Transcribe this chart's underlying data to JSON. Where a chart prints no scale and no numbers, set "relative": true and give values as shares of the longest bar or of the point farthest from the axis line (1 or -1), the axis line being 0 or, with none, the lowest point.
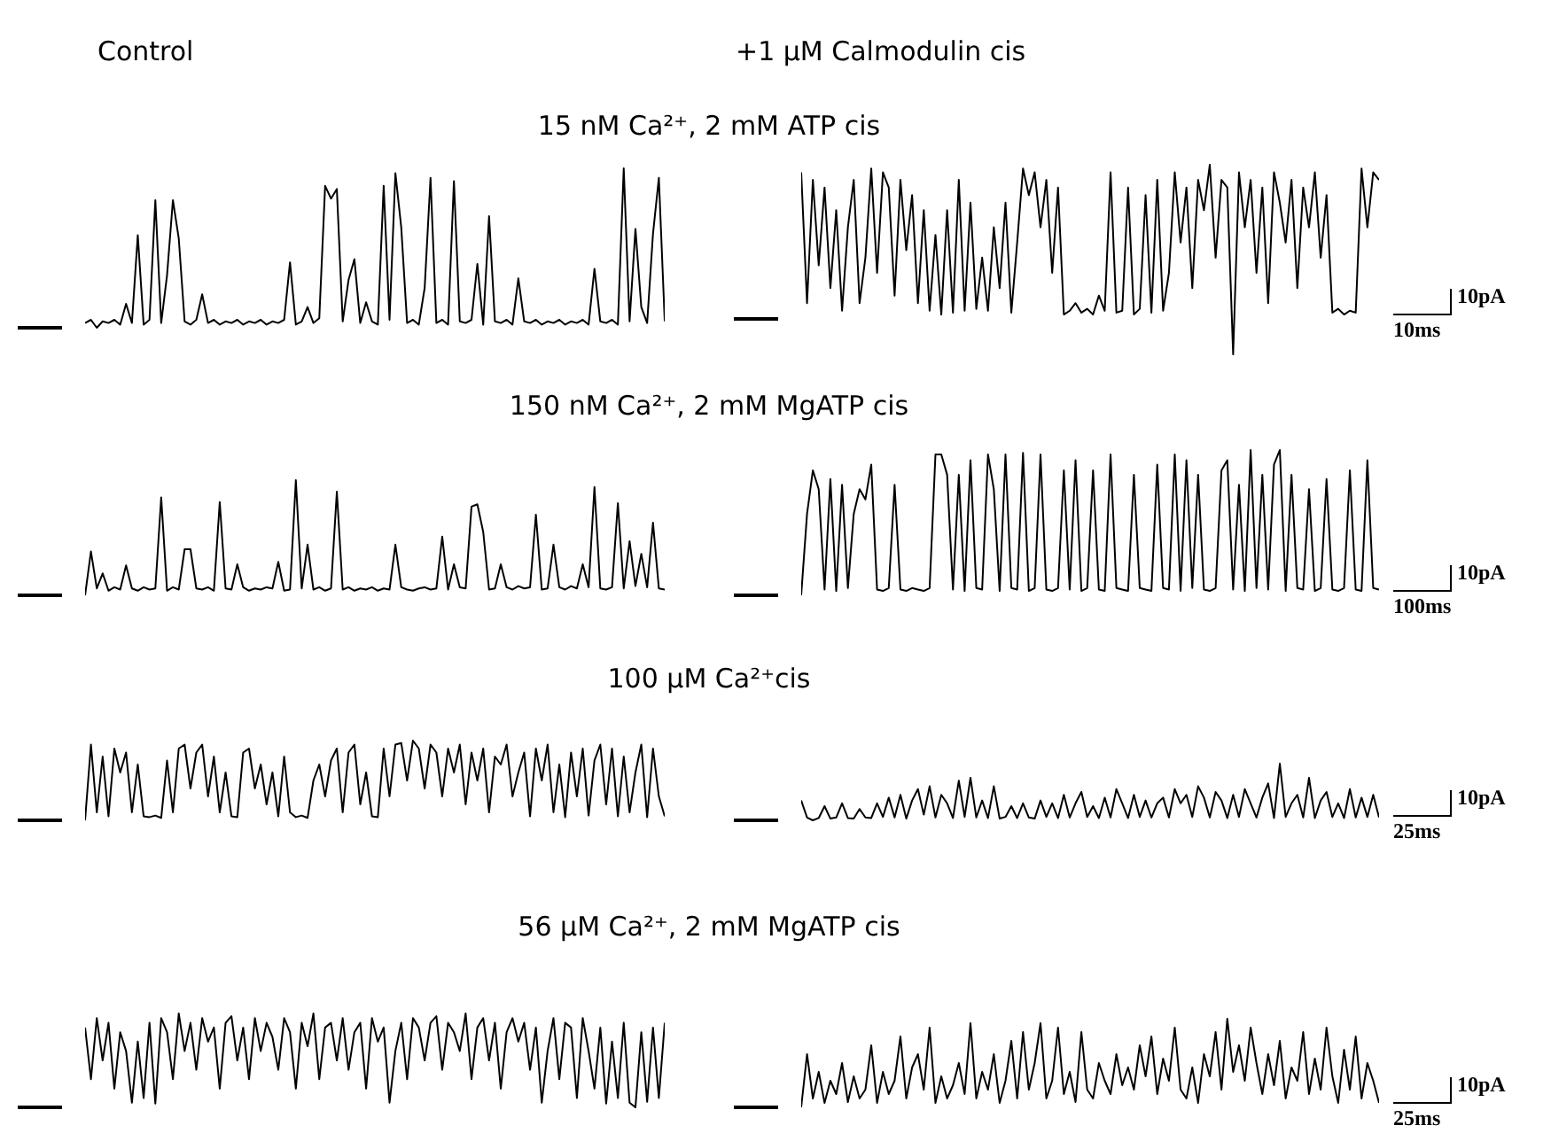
{
  "chart_data": [
    {
      "type": "line",
      "subtitle": "Control",
      "title": "15 nM Ca²⁺, 2 mM ATP cis",
      "relative": true,
      "color": "#000000",
      "categories": [
        null,
        null,
        null,
        null,
        null,
        null,
        null,
        null,
        null,
        null,
        null,
        null,
        null,
        null,
        null,
        null,
        null,
        null,
        null,
        null,
        null,
        null,
        null,
        null,
        null,
        null,
        null,
        null,
        null,
        null,
        null,
        null,
        null,
        null,
        null,
        null,
        null,
        null,
        null,
        null,
        null,
        null,
        null,
        null,
        null,
        null,
        null,
        null,
        null,
        null,
        null,
        null,
        null,
        null,
        null,
        null,
        null,
        null,
        null,
        null,
        null,
        null,
        null,
        null,
        null,
        null,
        null,
        null,
        null,
        null,
        null,
        null,
        null,
        null,
        null,
        null,
        null,
        null,
        null,
        null,
        null,
        null,
        null,
        null,
        null,
        null,
        null,
        null,
        null,
        null,
        null,
        null,
        null,
        null,
        null,
        null,
        null,
        null,
        null,
        null
      ],
      "values": [
        0.03,
        0.05,
        0,
        0.04,
        0.03,
        0.05,
        0.02,
        0.15,
        0.03,
        0.58,
        0.02,
        0.05,
        0.8,
        0.03,
        0.33,
        0.8,
        0.56,
        0.04,
        0.02,
        0.05,
        0.21,
        0.03,
        0.05,
        0.02,
        0.04,
        0.03,
        0.05,
        0.02,
        0.04,
        0.03,
        0.05,
        0.02,
        0.04,
        0.03,
        0.05,
        0.41,
        0.02,
        0.04,
        0.13,
        0.03,
        0.06,
        0.89,
        0.81,
        0.87,
        0.04,
        0.3,
        0.43,
        0.03,
        0.16,
        0.04,
        0.02,
        0.89,
        0.05,
        0.97,
        0.63,
        0.03,
        0.05,
        0.02,
        0.25,
        0.94,
        0.03,
        0.05,
        0.02,
        0.92,
        0.04,
        0.03,
        0.05,
        0.4,
        0.02,
        0.7,
        0.04,
        0.03,
        0.05,
        0.02,
        0.31,
        0.04,
        0.03,
        0.05,
        0.02,
        0.04,
        0.03,
        0.05,
        0.02,
        0.04,
        0.03,
        0.05,
        0.02,
        0.37,
        0.04,
        0.03,
        0.05,
        0.02,
        1,
        0.04,
        0.62,
        0.13,
        0.03,
        0.59,
        0.94,
        0.04
      ]
    },
    {
      "type": "line",
      "subtitle": "+1 μM Calmodulin cis",
      "relative": true,
      "color": "#000000",
      "annotations": [
        "10pA",
        "10ms"
      ],
      "categories": [
        null,
        null,
        null,
        null,
        null,
        null,
        null,
        null,
        null,
        null,
        null,
        null,
        null,
        null,
        null,
        null,
        null,
        null,
        null,
        null,
        null,
        null,
        null,
        null,
        null,
        null,
        null,
        null,
        null,
        null,
        null,
        null,
        null,
        null,
        null,
        null,
        null,
        null,
        null,
        null,
        null,
        null,
        null,
        null,
        null,
        null,
        null,
        null,
        null,
        null,
        null,
        null,
        null,
        null,
        null,
        null,
        null,
        null,
        null,
        null,
        null,
        null,
        null,
        null,
        null,
        null,
        null,
        null,
        null,
        null,
        null,
        null,
        null,
        null,
        null,
        null,
        null,
        null,
        null,
        null,
        null,
        null,
        null,
        null,
        null,
        null,
        null,
        null,
        null,
        null,
        null,
        null,
        null,
        null,
        null,
        null,
        null,
        null,
        null,
        null
      ],
      "values": [
        0.96,
        0.27,
        0.92,
        0.47,
        0.88,
        0.35,
        0.76,
        0.23,
        0.67,
        0.92,
        0.27,
        0.51,
        0.98,
        0.43,
        0.96,
        0.88,
        0.31,
        0.92,
        0.55,
        0.84,
        0.27,
        0.76,
        0.23,
        0.63,
        0.21,
        0.76,
        0.22,
        0.92,
        0.23,
        0.8,
        0.24,
        0.51,
        0.23,
        0.67,
        0.35,
        0.8,
        0.22,
        0.59,
        0.98,
        0.84,
        0.96,
        0.67,
        0.92,
        0.43,
        0.88,
        0.21,
        0.23,
        0.27,
        0.22,
        0.24,
        0.21,
        0.31,
        0.23,
        0.96,
        0.22,
        0.23,
        0.88,
        0.21,
        0.24,
        0.84,
        0.22,
        0.92,
        0.23,
        0.43,
        0.96,
        0.59,
        0.88,
        0.35,
        0.92,
        0.76,
        1,
        0.51,
        0.92,
        0.88,
        0,
        0.96,
        0.67,
        0.92,
        0.43,
        0.88,
        0.27,
        0.96,
        0.8,
        0.59,
        0.92,
        0.35,
        0.88,
        0.67,
        0.96,
        0.51,
        0.84,
        0.22,
        0.24,
        0.21,
        0.23,
        0.22,
        0.98,
        0.67,
        0.96,
        0.92
      ]
    },
    {
      "type": "line",
      "title": "150 nM Ca²⁺, 2 mM MgATP cis",
      "relative": true,
      "color": "#000000",
      "categories": [
        null,
        null,
        null,
        null,
        null,
        null,
        null,
        null,
        null,
        null,
        null,
        null,
        null,
        null,
        null,
        null,
        null,
        null,
        null,
        null,
        null,
        null,
        null,
        null,
        null,
        null,
        null,
        null,
        null,
        null,
        null,
        null,
        null,
        null,
        null,
        null,
        null,
        null,
        null,
        null,
        null,
        null,
        null,
        null,
        null,
        null,
        null,
        null,
        null,
        null,
        null,
        null,
        null,
        null,
        null,
        null,
        null,
        null,
        null,
        null,
        null,
        null,
        null,
        null,
        null,
        null,
        null,
        null,
        null,
        null,
        null,
        null,
        null,
        null,
        null,
        null,
        null,
        null,
        null,
        null,
        null,
        null,
        null,
        null,
        null,
        null,
        null,
        null,
        null,
        null,
        null,
        null,
        null,
        null,
        null,
        null,
        null,
        null,
        null,
        null
      ],
      "values": [
        0,
        0.38,
        0.06,
        0.19,
        0.04,
        0.07,
        0.05,
        0.26,
        0.06,
        0.04,
        0.07,
        0.05,
        0.06,
        0.85,
        0.04,
        0.07,
        0.05,
        0.4,
        0.4,
        0.06,
        0.05,
        0.07,
        0.04,
        0.81,
        0.06,
        0.05,
        0.27,
        0.07,
        0.04,
        0.06,
        0.05,
        0.07,
        0.06,
        0.29,
        0.04,
        0.05,
        1,
        0.06,
        0.44,
        0.05,
        0.07,
        0.04,
        0.06,
        0.9,
        0.05,
        0.07,
        0.04,
        0.06,
        0.05,
        0.07,
        0.04,
        0.06,
        0.05,
        0.44,
        0.07,
        0.05,
        0.04,
        0.06,
        0.07,
        0.05,
        0.06,
        0.51,
        0.05,
        0.27,
        0.07,
        0.06,
        0.77,
        0.79,
        0.55,
        0.05,
        0.06,
        0.27,
        0.07,
        0.05,
        0.08,
        0.06,
        0.07,
        0.7,
        0.05,
        0.06,
        0.44,
        0.07,
        0.05,
        0.08,
        0.06,
        0.27,
        0.07,
        0.94,
        0.06,
        0.05,
        0.07,
        0.8,
        0.06,
        0.47,
        0.08,
        0.36,
        0.07,
        0.63,
        0.06,
        0.05
      ]
    },
    {
      "type": "line",
      "relative": true,
      "color": "#000000",
      "annotations": [
        "10pA",
        "100ms"
      ],
      "categories": [
        null,
        null,
        null,
        null,
        null,
        null,
        null,
        null,
        null,
        null,
        null,
        null,
        null,
        null,
        null,
        null,
        null,
        null,
        null,
        null,
        null,
        null,
        null,
        null,
        null,
        null,
        null,
        null,
        null,
        null,
        null,
        null,
        null,
        null,
        null,
        null,
        null,
        null,
        null,
        null,
        null,
        null,
        null,
        null,
        null,
        null,
        null,
        null,
        null,
        null,
        null,
        null,
        null,
        null,
        null,
        null,
        null,
        null,
        null,
        null,
        null,
        null,
        null,
        null,
        null,
        null,
        null,
        null,
        null,
        null,
        null,
        null,
        null,
        null,
        null,
        null,
        null,
        null,
        null,
        null,
        null,
        null,
        null,
        null,
        null,
        null,
        null,
        null,
        null,
        null,
        null,
        null,
        null,
        null,
        null,
        null,
        null,
        null,
        null,
        null
      ],
      "values": [
        0,
        0.56,
        0.86,
        0.73,
        0.04,
        0.8,
        0.03,
        0.76,
        0.05,
        0.56,
        0.73,
        0.66,
        0.9,
        0.04,
        0.03,
        0.05,
        0.76,
        0.04,
        0.03,
        0.05,
        0.04,
        0.03,
        0.05,
        0.97,
        0.97,
        0.83,
        0.04,
        0.83,
        0.03,
        0.93,
        0.05,
        0.04,
        0.97,
        0.73,
        0.03,
        0.97,
        0.05,
        0.04,
        0.98,
        0.03,
        0.05,
        0.97,
        0.04,
        0.03,
        0.05,
        0.86,
        0.04,
        0.93,
        0.03,
        0.05,
        0.86,
        0.04,
        0.03,
        0.97,
        0.05,
        0.04,
        0.03,
        0.83,
        0.05,
        0.04,
        0.03,
        0.9,
        0.05,
        0.04,
        0.97,
        0.03,
        0.93,
        0.05,
        0.83,
        0.04,
        0.03,
        0.05,
        0.86,
        0.93,
        0.04,
        0.76,
        0.03,
        1,
        0.05,
        0.83,
        0.04,
        0.9,
        1,
        0.03,
        0.83,
        0.05,
        0.04,
        0.73,
        0.03,
        0.05,
        0.8,
        0.04,
        0.03,
        0.05,
        0.86,
        0.04,
        0.03,
        0.93,
        0.05,
        0.04
      ]
    },
    {
      "type": "line",
      "title": "100 μM Ca²⁺cis",
      "relative": true,
      "color": "#000000",
      "categories": [
        null,
        null,
        null,
        null,
        null,
        null,
        null,
        null,
        null,
        null,
        null,
        null,
        null,
        null,
        null,
        null,
        null,
        null,
        null,
        null,
        null,
        null,
        null,
        null,
        null,
        null,
        null,
        null,
        null,
        null,
        null,
        null,
        null,
        null,
        null,
        null,
        null,
        null,
        null,
        null,
        null,
        null,
        null,
        null,
        null,
        null,
        null,
        null,
        null,
        null,
        null,
        null,
        null,
        null,
        null,
        null,
        null,
        null,
        null,
        null,
        null,
        null,
        null,
        null,
        null,
        null,
        null,
        null,
        null,
        null,
        null,
        null,
        null,
        null,
        null,
        null,
        null,
        null,
        null,
        null,
        null,
        null,
        null,
        null,
        null,
        null,
        null,
        null,
        null,
        null,
        null,
        null,
        null,
        null,
        null,
        null,
        null,
        null,
        null,
        null
      ],
      "values": [
        0,
        0.95,
        0.1,
        0.8,
        0.05,
        0.9,
        0.6,
        0.85,
        0.1,
        0.7,
        0.05,
        0.04,
        0.06,
        0.03,
        0.75,
        0.1,
        0.9,
        0.95,
        0.4,
        0.85,
        0.95,
        0.3,
        0.8,
        0.1,
        0.6,
        0.05,
        0.04,
        0.85,
        0.9,
        0.4,
        0.7,
        0.2,
        0.6,
        0.05,
        0.8,
        0.1,
        0.04,
        0.06,
        0.03,
        0.5,
        0.7,
        0.3,
        0.75,
        0.9,
        0.1,
        0.85,
        0.95,
        0.2,
        0.6,
        0.05,
        0.04,
        0.9,
        0.3,
        0.95,
        0.97,
        0.5,
        1,
        0.9,
        0.4,
        0.95,
        0.85,
        0.3,
        0.9,
        0.6,
        0.95,
        0.2,
        0.85,
        0.5,
        0.9,
        0.1,
        0.8,
        0.7,
        0.95,
        0.3,
        0.6,
        0.85,
        0.05,
        0.9,
        0.5,
        0.95,
        0.1,
        0.7,
        0.04,
        0.85,
        0.3,
        0.9,
        0.06,
        0.75,
        0.95,
        0.2,
        0.9,
        0.05,
        0.8,
        0.1,
        0.6,
        0.95,
        0.04,
        0.9,
        0.3,
        0.05
      ]
    },
    {
      "type": "line",
      "relative": true,
      "color": "#000000",
      "annotations": [
        "10pA",
        "25ms"
      ],
      "categories": [
        null,
        null,
        null,
        null,
        null,
        null,
        null,
        null,
        null,
        null,
        null,
        null,
        null,
        null,
        null,
        null,
        null,
        null,
        null,
        null,
        null,
        null,
        null,
        null,
        null,
        null,
        null,
        null,
        null,
        null,
        null,
        null,
        null,
        null,
        null,
        null,
        null,
        null,
        null,
        null,
        null,
        null,
        null,
        null,
        null,
        null,
        null,
        null,
        null,
        null,
        null,
        null,
        null,
        null,
        null,
        null,
        null,
        null,
        null,
        null,
        null,
        null,
        null,
        null,
        null,
        null,
        null,
        null,
        null,
        null,
        null,
        null,
        null,
        null,
        null,
        null,
        null,
        null,
        null,
        null,
        null,
        null,
        null,
        null,
        null,
        null,
        null,
        null,
        null,
        null,
        null,
        null,
        null,
        null,
        null,
        null,
        null,
        null,
        null,
        null
      ],
      "values": [
        0.35,
        0.05,
        0,
        0.04,
        0.25,
        0.03,
        0.05,
        0.3,
        0.04,
        0.03,
        0.2,
        0.05,
        0.04,
        0.3,
        0.06,
        0.4,
        0.05,
        0.45,
        0.03,
        0.35,
        0.55,
        0.1,
        0.6,
        0.05,
        0.45,
        0.3,
        0.04,
        0.7,
        0.06,
        0.75,
        0.05,
        0.35,
        0.04,
        0.6,
        0.03,
        0.06,
        0.25,
        0.04,
        0.3,
        0.05,
        0.03,
        0.35,
        0.06,
        0.3,
        0.04,
        0.45,
        0.05,
        0.3,
        0.5,
        0.06,
        0.25,
        0.04,
        0.4,
        0.05,
        0.55,
        0.3,
        0.04,
        0.45,
        0.06,
        0.35,
        0.05,
        0.3,
        0.4,
        0.05,
        0.55,
        0.3,
        0.45,
        0.06,
        0.6,
        0.4,
        0.05,
        0.5,
        0.35,
        0.04,
        0.45,
        0.06,
        0.55,
        0.3,
        0.05,
        0.4,
        0.65,
        0.04,
        1,
        0.06,
        0.3,
        0.45,
        0.05,
        0.75,
        0.04,
        0.35,
        0.5,
        0.06,
        0.3,
        0.04,
        0.55,
        0.05,
        0.4,
        0.06,
        0.45,
        0.05
      ]
    },
    {
      "type": "line",
      "title": "56 μM Ca²⁺, 2 mM MgATP cis",
      "relative": true,
      "color": "#000000",
      "categories": [
        null,
        null,
        null,
        null,
        null,
        null,
        null,
        null,
        null,
        null,
        null,
        null,
        null,
        null,
        null,
        null,
        null,
        null,
        null,
        null,
        null,
        null,
        null,
        null,
        null,
        null,
        null,
        null,
        null,
        null,
        null,
        null,
        null,
        null,
        null,
        null,
        null,
        null,
        null,
        null,
        null,
        null,
        null,
        null,
        null,
        null,
        null,
        null,
        null,
        null,
        null,
        null,
        null,
        null,
        null,
        null,
        null,
        null,
        null,
        null,
        null,
        null,
        null,
        null,
        null,
        null,
        null,
        null,
        null,
        null,
        null,
        null,
        null,
        null,
        null,
        null,
        null,
        null,
        null,
        null,
        null,
        null,
        null,
        null,
        null,
        null,
        null,
        null,
        null,
        null,
        null,
        null,
        null,
        null,
        null,
        null,
        null,
        null,
        null,
        null
      ],
      "values": [
        0.85,
        0.3,
        0.95,
        0.5,
        0.9,
        0.2,
        0.8,
        0.6,
        0.05,
        0.7,
        0.1,
        0.9,
        0.04,
        0.95,
        0.8,
        0.3,
        1,
        0.6,
        0.9,
        0.4,
        0.95,
        0.7,
        0.85,
        0.2,
        0.9,
        0.97,
        0.5,
        0.85,
        0.3,
        0.95,
        0.6,
        0.9,
        0.75,
        0.4,
        0.95,
        0.8,
        0.2,
        0.9,
        0.65,
        1,
        0.3,
        0.85,
        0.9,
        0.5,
        0.95,
        0.4,
        0.8,
        0.9,
        0.2,
        0.95,
        0.7,
        0.85,
        0.05,
        0.6,
        0.9,
        0.3,
        0.95,
        0.85,
        0.5,
        0.9,
        0.97,
        0.4,
        0.9,
        0.8,
        0.6,
        1,
        0.3,
        0.85,
        0.95,
        0.5,
        0.9,
        0.2,
        0.8,
        0.95,
        0.7,
        0.9,
        0.4,
        0.85,
        0.05,
        0.6,
        0.95,
        0.3,
        0.9,
        0.85,
        0.1,
        0.95,
        0.6,
        0.2,
        0.85,
        0.04,
        0.7,
        0.1,
        0.9,
        0.05,
        0,
        0.8,
        0.06,
        0.85,
        0.1,
        0.9
      ]
    },
    {
      "type": "line",
      "relative": true,
      "color": "#000000",
      "annotations": [
        "10pA",
        "25ms"
      ],
      "categories": [
        null,
        null,
        null,
        null,
        null,
        null,
        null,
        null,
        null,
        null,
        null,
        null,
        null,
        null,
        null,
        null,
        null,
        null,
        null,
        null,
        null,
        null,
        null,
        null,
        null,
        null,
        null,
        null,
        null,
        null,
        null,
        null,
        null,
        null,
        null,
        null,
        null,
        null,
        null,
        null,
        null,
        null,
        null,
        null,
        null,
        null,
        null,
        null,
        null,
        null,
        null,
        null,
        null,
        null,
        null,
        null,
        null,
        null,
        null,
        null,
        null,
        null,
        null,
        null,
        null,
        null,
        null,
        null,
        null,
        null,
        null,
        null,
        null,
        null,
        null,
        null,
        null,
        null,
        null,
        null,
        null,
        null,
        null,
        null,
        null,
        null,
        null,
        null,
        null,
        null,
        null,
        null,
        null,
        null,
        null,
        null,
        null,
        null,
        null,
        null
      ],
      "values": [
        0,
        0.6,
        0.1,
        0.4,
        0.05,
        0.3,
        0.15,
        0.5,
        0.06,
        0.35,
        0.1,
        0.2,
        0.7,
        0.05,
        0.4,
        0.15,
        0.3,
        0.8,
        0.1,
        0.45,
        0.6,
        0.2,
        0.9,
        0.05,
        0.35,
        0.1,
        0.25,
        0.5,
        0.15,
        0.95,
        0.1,
        0.4,
        0.2,
        0.6,
        0.05,
        0.3,
        0.75,
        0.1,
        0.85,
        0.2,
        0.5,
        0.95,
        0.1,
        0.3,
        0.9,
        0.15,
        0.4,
        0.06,
        0.85,
        0.2,
        0.1,
        0.5,
        0.3,
        0.15,
        0.6,
        0.25,
        0.45,
        0.2,
        0.7,
        0.35,
        0.8,
        0.15,
        0.55,
        0.3,
        0.9,
        0.2,
        0.1,
        0.45,
        0.05,
        0.6,
        0.35,
        0.85,
        0.2,
        1,
        0.4,
        0.7,
        0.3,
        0.9,
        0.5,
        0.15,
        0.6,
        0.25,
        0.75,
        0.1,
        0.45,
        0.3,
        0.85,
        0.15,
        0.55,
        0.2,
        0.9,
        0.35,
        0.05,
        0.65,
        0.2,
        0.8,
        0.1,
        0.5,
        0.3,
        0.05
      ]
    }
  ]
}
